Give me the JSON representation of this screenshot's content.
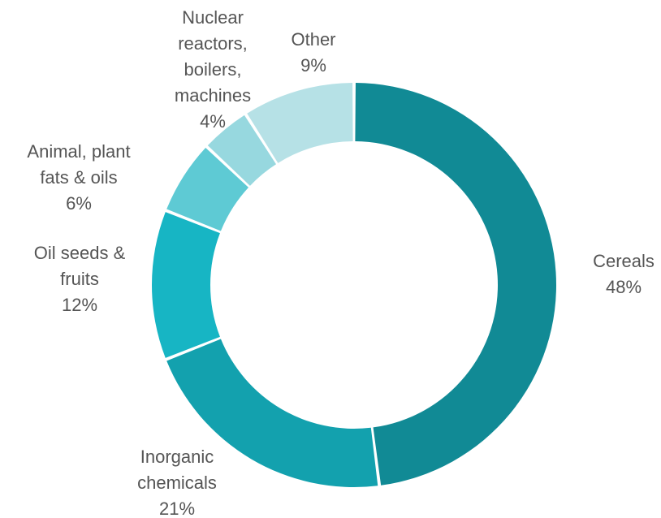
{
  "chart_data": {
    "type": "pie",
    "variant": "donut",
    "title": "",
    "slices": [
      {
        "label": [
          "Cereals"
        ],
        "percent_label": "48%",
        "value": 48,
        "color": "#118a95"
      },
      {
        "label": [
          "Inorganic",
          "chemicals"
        ],
        "percent_label": "21%",
        "value": 21,
        "color": "#13a1ae"
      },
      {
        "label": [
          "Oil seeds &",
          "fruits"
        ],
        "percent_label": "12%",
        "value": 12,
        "color": "#17b5c4"
      },
      {
        "label": [
          "Animal, plant",
          "fats & oils"
        ],
        "percent_label": "6%",
        "value": 6,
        "color": "#5ecad4"
      },
      {
        "label": [
          "Nuclear",
          "reactors,",
          "boilers,",
          "machines"
        ],
        "percent_label": "4%",
        "value": 4,
        "color": "#97d8df"
      },
      {
        "label": [
          "Other"
        ],
        "percent_label": "9%",
        "value": 9,
        "color": "#b6e1e6"
      }
    ]
  }
}
